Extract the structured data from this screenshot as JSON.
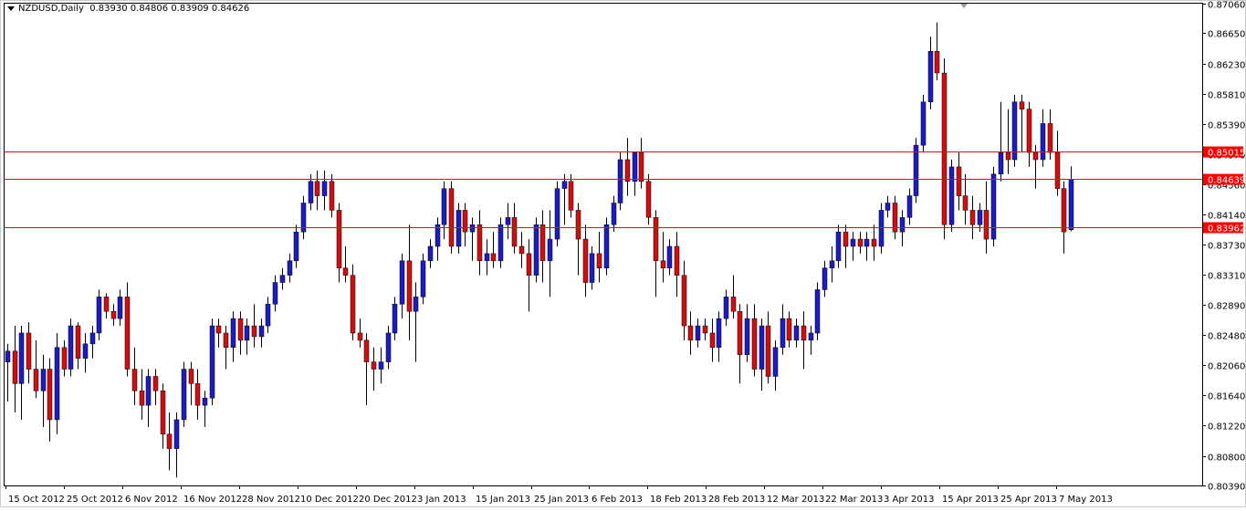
{
  "header": {
    "symbol_label": "NZDUSD,Daily",
    "ohlc_text": "0.83930 0.84806 0.83909 0.84626"
  },
  "colors": {
    "background": "#ffffff",
    "frame": "#000000",
    "bull": "#1c1cc0",
    "bear": "#d01010",
    "level_line": "#e01010",
    "level_label_bg": "#ff0000",
    "level_label_text": "#ffffff"
  },
  "chart_data": {
    "type": "candlestick",
    "symbol": "NZDUSD",
    "timeframe": "Daily",
    "ylim": [
      0.8039,
      0.8706
    ],
    "y_ticks": [
      "0.87060",
      "0.86650",
      "0.86230",
      "0.85810",
      "0.85390",
      "0.84970",
      "0.84560",
      "0.84140",
      "0.83730",
      "0.83310",
      "0.82890",
      "0.82480",
      "0.82060",
      "0.81640",
      "0.81220",
      "0.80800",
      "0.80390"
    ],
    "x_tick_labels": [
      "15 Oct 2012",
      "25 Oct 2012",
      "6 Nov 2012",
      "16 Nov 2012",
      "28 Nov 2012",
      "10 Dec 2012",
      "20 Dec 2012",
      "3 Jan 2013",
      "15 Jan 2013",
      "25 Jan 2013",
      "6 Feb 2013",
      "18 Feb 2013",
      "28 Feb 2013",
      "12 Mar 2013",
      "22 Mar 2013",
      "3 Apr 2013",
      "15 Apr 2013",
      "25 Apr 2013",
      "7 May 2013"
    ],
    "levels": [
      {
        "value": 0.85015,
        "label": "0.85015"
      },
      {
        "value": 0.84639,
        "label": "0.84639"
      },
      {
        "value": 0.83962,
        "label": "0.83962"
      }
    ],
    "candles": [
      [
        0.821,
        0.8235,
        0.8155,
        0.8225
      ],
      [
        0.8225,
        0.826,
        0.814,
        0.818
      ],
      [
        0.818,
        0.826,
        0.813,
        0.825
      ],
      [
        0.825,
        0.8265,
        0.818,
        0.82
      ],
      [
        0.82,
        0.824,
        0.816,
        0.817
      ],
      [
        0.817,
        0.822,
        0.812,
        0.82
      ],
      [
        0.82,
        0.8215,
        0.81,
        0.813
      ],
      [
        0.813,
        0.825,
        0.811,
        0.823
      ],
      [
        0.823,
        0.824,
        0.819,
        0.82
      ],
      [
        0.82,
        0.827,
        0.819,
        0.826
      ],
      [
        0.826,
        0.8265,
        0.82,
        0.8215
      ],
      [
        0.8215,
        0.825,
        0.8195,
        0.8235
      ],
      [
        0.8235,
        0.826,
        0.8215,
        0.825
      ],
      [
        0.825,
        0.831,
        0.824,
        0.83
      ],
      [
        0.83,
        0.8305,
        0.827,
        0.828
      ],
      [
        0.828,
        0.829,
        0.826,
        0.827
      ],
      [
        0.827,
        0.831,
        0.826,
        0.83
      ],
      [
        0.83,
        0.832,
        0.819,
        0.82
      ],
      [
        0.82,
        0.823,
        0.815,
        0.817
      ],
      [
        0.817,
        0.82,
        0.813,
        0.815
      ],
      [
        0.815,
        0.82,
        0.812,
        0.819
      ],
      [
        0.819,
        0.82,
        0.815,
        0.817
      ],
      [
        0.817,
        0.818,
        0.809,
        0.811
      ],
      [
        0.811,
        0.814,
        0.806,
        0.809
      ],
      [
        0.809,
        0.814,
        0.805,
        0.813
      ],
      [
        0.813,
        0.821,
        0.812,
        0.82
      ],
      [
        0.82,
        0.821,
        0.815,
        0.818
      ],
      [
        0.818,
        0.82,
        0.813,
        0.815
      ],
      [
        0.815,
        0.817,
        0.812,
        0.816
      ],
      [
        0.816,
        0.827,
        0.815,
        0.826
      ],
      [
        0.826,
        0.827,
        0.823,
        0.825
      ],
      [
        0.825,
        0.826,
        0.82,
        0.823
      ],
      [
        0.823,
        0.828,
        0.821,
        0.827
      ],
      [
        0.827,
        0.828,
        0.822,
        0.824
      ],
      [
        0.824,
        0.827,
        0.822,
        0.826
      ],
      [
        0.826,
        0.829,
        0.823,
        0.8245
      ],
      [
        0.8245,
        0.827,
        0.823,
        0.826
      ],
      [
        0.826,
        0.83,
        0.825,
        0.829
      ],
      [
        0.829,
        0.833,
        0.828,
        0.832
      ],
      [
        0.832,
        0.834,
        0.831,
        0.833
      ],
      [
        0.833,
        0.836,
        0.832,
        0.835
      ],
      [
        0.835,
        0.84,
        0.834,
        0.839
      ],
      [
        0.839,
        0.844,
        0.838,
        0.843
      ],
      [
        0.843,
        0.847,
        0.842,
        0.846
      ],
      [
        0.846,
        0.8475,
        0.842,
        0.844
      ],
      [
        0.844,
        0.8475,
        0.842,
        0.846
      ],
      [
        0.846,
        0.847,
        0.841,
        0.842
      ],
      [
        0.842,
        0.843,
        0.832,
        0.834
      ],
      [
        0.834,
        0.837,
        0.832,
        0.833
      ],
      [
        0.833,
        0.8345,
        0.824,
        0.825
      ],
      [
        0.825,
        0.827,
        0.823,
        0.824
      ],
      [
        0.824,
        0.825,
        0.815,
        0.821
      ],
      [
        0.821,
        0.823,
        0.817,
        0.82
      ],
      [
        0.82,
        0.823,
        0.818,
        0.821
      ],
      [
        0.821,
        0.826,
        0.82,
        0.825
      ],
      [
        0.825,
        0.83,
        0.824,
        0.829
      ],
      [
        0.829,
        0.836,
        0.827,
        0.835
      ],
      [
        0.835,
        0.84,
        0.824,
        0.828
      ],
      [
        0.828,
        0.832,
        0.821,
        0.83
      ],
      [
        0.83,
        0.836,
        0.829,
        0.835
      ],
      [
        0.835,
        0.838,
        0.834,
        0.837
      ],
      [
        0.837,
        0.841,
        0.835,
        0.84
      ],
      [
        0.84,
        0.846,
        0.838,
        0.845
      ],
      [
        0.845,
        0.846,
        0.836,
        0.837
      ],
      [
        0.837,
        0.843,
        0.836,
        0.842
      ],
      [
        0.842,
        0.843,
        0.837,
        0.839
      ],
      [
        0.839,
        0.841,
        0.835,
        0.84
      ],
      [
        0.84,
        0.842,
        0.833,
        0.835
      ],
      [
        0.835,
        0.838,
        0.833,
        0.836
      ],
      [
        0.836,
        0.839,
        0.834,
        0.835
      ],
      [
        0.835,
        0.841,
        0.834,
        0.84
      ],
      [
        0.84,
        0.843,
        0.838,
        0.841
      ],
      [
        0.841,
        0.843,
        0.836,
        0.837
      ],
      [
        0.837,
        0.839,
        0.834,
        0.836
      ],
      [
        0.836,
        0.838,
        0.828,
        0.833
      ],
      [
        0.833,
        0.841,
        0.832,
        0.84
      ],
      [
        0.84,
        0.842,
        0.832,
        0.835
      ],
      [
        0.835,
        0.842,
        0.83,
        0.838
      ],
      [
        0.838,
        0.846,
        0.837,
        0.845
      ],
      [
        0.845,
        0.847,
        0.84,
        0.846
      ],
      [
        0.846,
        0.847,
        0.841,
        0.842
      ],
      [
        0.842,
        0.843,
        0.833,
        0.838
      ],
      [
        0.838,
        0.84,
        0.83,
        0.832
      ],
      [
        0.832,
        0.837,
        0.831,
        0.836
      ],
      [
        0.836,
        0.839,
        0.832,
        0.834
      ],
      [
        0.834,
        0.841,
        0.833,
        0.84
      ],
      [
        0.84,
        0.844,
        0.839,
        0.843
      ],
      [
        0.843,
        0.85,
        0.842,
        0.849
      ],
      [
        0.849,
        0.852,
        0.844,
        0.846
      ],
      [
        0.846,
        0.85,
        0.844,
        0.85
      ],
      [
        0.85,
        0.852,
        0.845,
        0.846
      ],
      [
        0.846,
        0.847,
        0.84,
        0.841
      ],
      [
        0.841,
        0.842,
        0.83,
        0.835
      ],
      [
        0.835,
        0.839,
        0.832,
        0.834
      ],
      [
        0.834,
        0.838,
        0.833,
        0.837
      ],
      [
        0.837,
        0.839,
        0.83,
        0.833
      ],
      [
        0.833,
        0.835,
        0.824,
        0.826
      ],
      [
        0.826,
        0.828,
        0.822,
        0.824
      ],
      [
        0.824,
        0.827,
        0.823,
        0.826
      ],
      [
        0.826,
        0.827,
        0.824,
        0.825
      ],
      [
        0.825,
        0.827,
        0.821,
        0.823
      ],
      [
        0.823,
        0.828,
        0.821,
        0.827
      ],
      [
        0.827,
        0.831,
        0.826,
        0.83
      ],
      [
        0.83,
        0.833,
        0.827,
        0.828
      ],
      [
        0.828,
        0.829,
        0.818,
        0.822
      ],
      [
        0.822,
        0.829,
        0.821,
        0.827
      ],
      [
        0.827,
        0.829,
        0.819,
        0.82
      ],
      [
        0.82,
        0.827,
        0.817,
        0.826
      ],
      [
        0.826,
        0.828,
        0.818,
        0.819
      ],
      [
        0.819,
        0.824,
        0.817,
        0.823
      ],
      [
        0.823,
        0.829,
        0.822,
        0.827
      ],
      [
        0.827,
        0.828,
        0.823,
        0.824
      ],
      [
        0.824,
        0.827,
        0.823,
        0.826
      ],
      [
        0.826,
        0.828,
        0.82,
        0.824
      ],
      [
        0.824,
        0.826,
        0.822,
        0.825
      ],
      [
        0.825,
        0.832,
        0.824,
        0.831
      ],
      [
        0.831,
        0.835,
        0.83,
        0.834
      ],
      [
        0.834,
        0.837,
        0.832,
        0.835
      ],
      [
        0.835,
        0.84,
        0.834,
        0.839
      ],
      [
        0.839,
        0.84,
        0.834,
        0.837
      ],
      [
        0.837,
        0.839,
        0.835,
        0.838
      ],
      [
        0.838,
        0.839,
        0.836,
        0.837
      ],
      [
        0.837,
        0.839,
        0.835,
        0.838
      ],
      [
        0.838,
        0.84,
        0.835,
        0.837
      ],
      [
        0.837,
        0.843,
        0.836,
        0.842
      ],
      [
        0.842,
        0.844,
        0.841,
        0.843
      ],
      [
        0.843,
        0.844,
        0.838,
        0.839
      ],
      [
        0.839,
        0.842,
        0.837,
        0.841
      ],
      [
        0.841,
        0.845,
        0.84,
        0.844
      ],
      [
        0.844,
        0.852,
        0.843,
        0.851
      ],
      [
        0.851,
        0.858,
        0.85,
        0.857
      ],
      [
        0.857,
        0.866,
        0.856,
        0.864
      ],
      [
        0.864,
        0.868,
        0.86,
        0.861
      ],
      [
        0.861,
        0.863,
        0.838,
        0.84
      ],
      [
        0.84,
        0.849,
        0.839,
        0.848
      ],
      [
        0.848,
        0.85,
        0.842,
        0.844
      ],
      [
        0.844,
        0.847,
        0.84,
        0.842
      ],
      [
        0.842,
        0.844,
        0.838,
        0.84
      ],
      [
        0.84,
        0.843,
        0.839,
        0.842
      ],
      [
        0.842,
        0.846,
        0.836,
        0.838
      ],
      [
        0.838,
        0.848,
        0.837,
        0.847
      ],
      [
        0.847,
        0.857,
        0.846,
        0.85
      ],
      [
        0.85,
        0.856,
        0.847,
        0.849
      ],
      [
        0.849,
        0.858,
        0.848,
        0.857
      ],
      [
        0.857,
        0.858,
        0.85,
        0.856
      ],
      [
        0.856,
        0.857,
        0.848,
        0.85
      ],
      [
        0.85,
        0.851,
        0.845,
        0.849
      ],
      [
        0.849,
        0.856,
        0.848,
        0.854
      ],
      [
        0.854,
        0.856,
        0.849,
        0.85
      ],
      [
        0.85,
        0.853,
        0.844,
        0.845
      ],
      [
        0.845,
        0.846,
        0.836,
        0.839
      ],
      [
        0.8393,
        0.8481,
        0.8391,
        0.8463
      ]
    ]
  }
}
